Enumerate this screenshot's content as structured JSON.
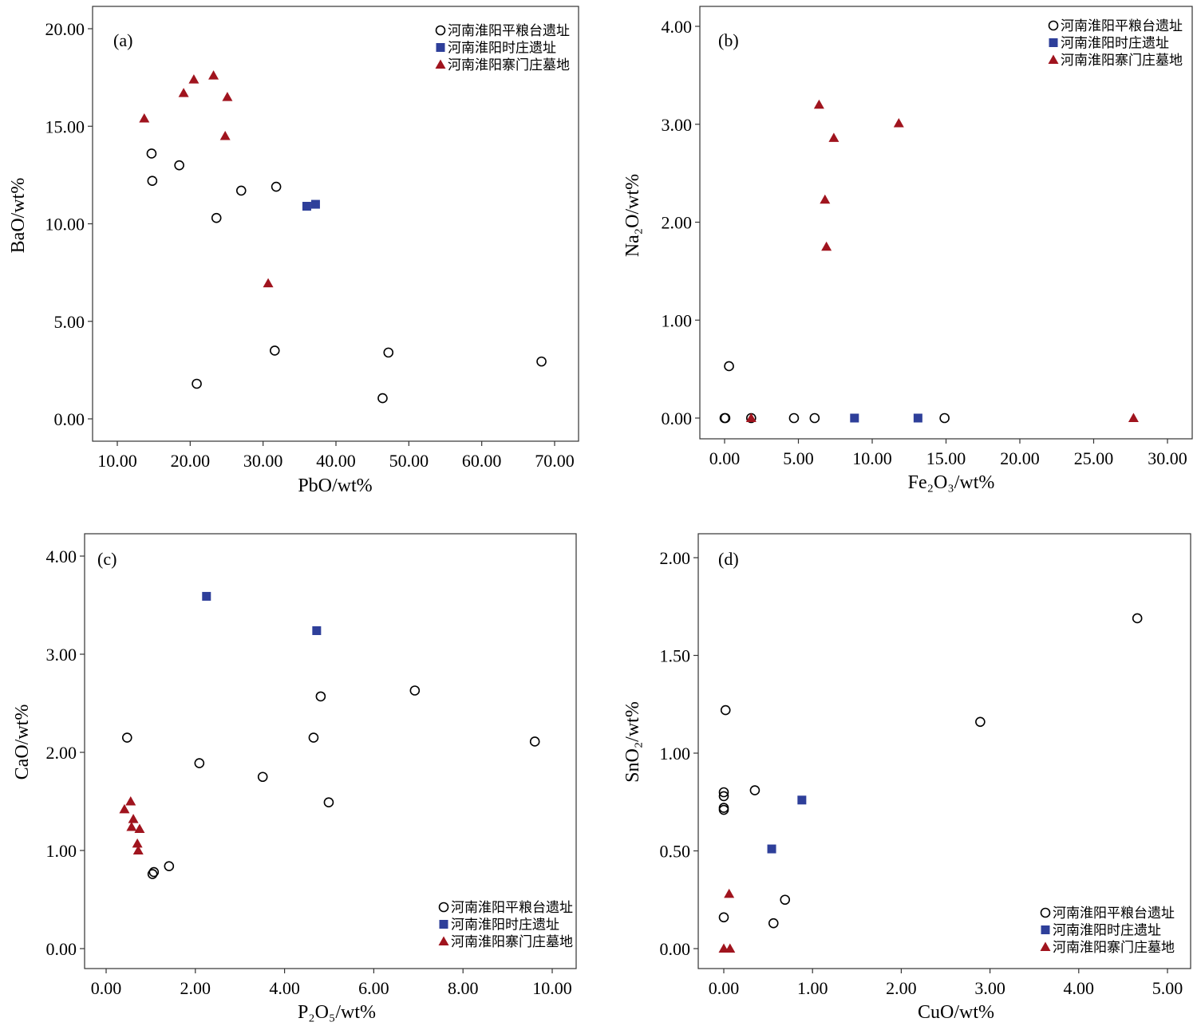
{
  "colors": {
    "circle": "#000000",
    "square": "#2e3f9a",
    "triangle": "#a0141e"
  },
  "legend_entries": [
    {
      "symbol": "circle",
      "label": "河南淮阳平粮台遗址"
    },
    {
      "symbol": "square",
      "label": "河南淮阳时庄遗址"
    },
    {
      "symbol": "triangle",
      "label": "河南淮阳寨门庄墓地"
    }
  ],
  "chart_data": [
    {
      "type": "scatter",
      "panel_label": "(a)",
      "xlabel": "PbO/wt%",
      "ylabel": "BaO/wt%",
      "xlim": [
        10,
        70
      ],
      "ylim": [
        0,
        20
      ],
      "grid": false,
      "legend": "top-right",
      "xticks": [
        "10.00",
        "20.00",
        "30.00",
        "40.00",
        "50.00",
        "60.00",
        "70.00"
      ],
      "yticks": [
        "0.00",
        "5.00",
        "10.00",
        "15.00",
        "20.00"
      ],
      "series": [
        {
          "name": "河南淮阳平粮台遗址",
          "symbol": "circle",
          "points": [
            [
              14.7,
              13.6
            ],
            [
              14.8,
              12.2
            ],
            [
              18.5,
              13.0
            ],
            [
              27.0,
              11.7
            ],
            [
              31.8,
              11.9
            ],
            [
              23.6,
              10.3
            ],
            [
              31.6,
              3.5
            ],
            [
              47.2,
              3.4
            ],
            [
              20.9,
              1.8
            ],
            [
              46.4,
              1.06
            ],
            [
              68.2,
              2.94
            ]
          ]
        },
        {
          "name": "河南淮阳时庄遗址",
          "symbol": "square",
          "points": [
            [
              36.0,
              10.9
            ],
            [
              37.2,
              11.0
            ]
          ]
        },
        {
          "name": "河南淮阳寨门庄墓地",
          "symbol": "triangle",
          "points": [
            [
              13.7,
              15.4
            ],
            [
              19.1,
              16.7
            ],
            [
              20.5,
              17.4
            ],
            [
              23.2,
              17.6
            ],
            [
              25.1,
              16.5
            ],
            [
              24.8,
              14.5
            ],
            [
              30.7,
              6.95
            ]
          ]
        }
      ]
    },
    {
      "type": "scatter",
      "panel_label": "(b)",
      "xlabel": "Fe₂O₃/wt%",
      "ylabel": "Na₂O/wt%",
      "xlim": [
        0,
        30
      ],
      "ylim": [
        0,
        4
      ],
      "grid": false,
      "legend": "top-right",
      "xticks": [
        "0.00",
        "5.00",
        "10.00",
        "15.00",
        "20.00",
        "25.00",
        "30.00"
      ],
      "yticks": [
        "0.00",
        "1.00",
        "2.00",
        "3.00",
        "4.00"
      ],
      "series": [
        {
          "name": "河南淮阳平粮台遗址",
          "symbol": "circle",
          "points": [
            [
              0.3,
              0.53
            ],
            [
              0.0,
              0.0
            ],
            [
              0.05,
              0.0
            ],
            [
              1.8,
              0.0
            ],
            [
              4.7,
              0.0
            ],
            [
              6.1,
              0.0
            ],
            [
              14.9,
              0.0
            ]
          ]
        },
        {
          "name": "河南淮阳时庄遗址",
          "symbol": "square",
          "points": [
            [
              8.8,
              0.0
            ],
            [
              13.1,
              0.0
            ]
          ]
        },
        {
          "name": "河南淮阳寨门庄墓地",
          "symbol": "triangle",
          "points": [
            [
              1.8,
              0.0
            ],
            [
              6.4,
              3.2
            ],
            [
              7.4,
              2.86
            ],
            [
              11.8,
              3.01
            ],
            [
              6.8,
              2.23
            ],
            [
              6.9,
              1.75
            ],
            [
              27.7,
              0.0
            ]
          ]
        }
      ]
    },
    {
      "type": "scatter",
      "panel_label": "(c)",
      "xlabel": "P₂O₅/wt%",
      "ylabel": "CaO/wt%",
      "xlim": [
        0,
        10
      ],
      "ylim": [
        0,
        4
      ],
      "grid": false,
      "legend": "bottom-right",
      "xticks": [
        "0.00",
        "2.00",
        "4.00",
        "6.00",
        "8.00",
        "10.00"
      ],
      "yticks": [
        "0.00",
        "1.00",
        "2.00",
        "3.00",
        "4.00"
      ],
      "series": [
        {
          "name": "河南淮阳平粮台遗址",
          "symbol": "circle",
          "points": [
            [
              0.47,
              2.15
            ],
            [
              2.09,
              1.89
            ],
            [
              3.51,
              1.75
            ],
            [
              4.65,
              2.15
            ],
            [
              4.81,
              2.57
            ],
            [
              4.99,
              1.49
            ],
            [
              6.92,
              2.63
            ],
            [
              9.61,
              2.11
            ],
            [
              1.04,
              0.76
            ],
            [
              1.07,
              0.78
            ],
            [
              1.41,
              0.84
            ]
          ]
        },
        {
          "name": "河南淮阳时庄遗址",
          "symbol": "square",
          "points": [
            [
              2.25,
              3.59
            ],
            [
              4.72,
              3.24
            ]
          ]
        },
        {
          "name": "河南淮阳寨门庄墓地",
          "symbol": "triangle",
          "points": [
            [
              0.41,
              1.42
            ],
            [
              0.55,
              1.5
            ],
            [
              0.61,
              1.32
            ],
            [
              0.57,
              1.24
            ],
            [
              0.75,
              1.22
            ],
            [
              0.7,
              1.07
            ],
            [
              0.72,
              1.0
            ]
          ]
        }
      ]
    },
    {
      "type": "scatter",
      "panel_label": "(d)",
      "xlabel": "CuO/wt%",
      "ylabel": "SnO₂/wt%",
      "xlim": [
        0,
        5
      ],
      "ylim": [
        0,
        2
      ],
      "grid": false,
      "legend": "bottom-right",
      "xticks": [
        "0.00",
        "1.00",
        "2.00",
        "3.00",
        "4.00",
        "5.00"
      ],
      "yticks": [
        "0.00",
        "0.50",
        "1.00",
        "1.50",
        "2.00"
      ],
      "series": [
        {
          "name": "河南淮阳平粮台遗址",
          "symbol": "circle",
          "points": [
            [
              0.02,
              1.22
            ],
            [
              0.0,
              0.8
            ],
            [
              0.0,
              0.78
            ],
            [
              0.0,
              0.72
            ],
            [
              0.0,
              0.71
            ],
            [
              0.35,
              0.81
            ],
            [
              0.0,
              0.16
            ],
            [
              0.69,
              0.25
            ],
            [
              0.56,
              0.13
            ],
            [
              2.89,
              1.16
            ],
            [
              4.66,
              1.69
            ]
          ]
        },
        {
          "name": "河南淮阳时庄遗址",
          "symbol": "square",
          "points": [
            [
              0.88,
              0.76
            ],
            [
              0.54,
              0.51
            ]
          ]
        },
        {
          "name": "河南淮阳寨门庄墓地",
          "symbol": "triangle",
          "points": [
            [
              0.06,
              0.28
            ],
            [
              0.0,
              0.0
            ],
            [
              0.07,
              0.0
            ]
          ]
        }
      ]
    }
  ]
}
